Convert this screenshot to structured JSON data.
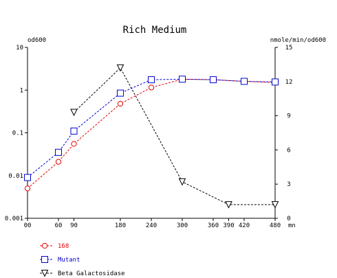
{
  "chart_data": {
    "type": "line",
    "title": "Rich Medium",
    "y_left_label": "od600",
    "y_right_label": "nmole/min/od600",
    "x_unit": "mn",
    "x_ticks": [
      0,
      60,
      90,
      180,
      240,
      300,
      360,
      390,
      420,
      480
    ],
    "x_tick_labels": [
      "00",
      "60",
      "90",
      "180",
      "240",
      "300",
      "360",
      "390",
      "420",
      "480"
    ],
    "xlim": [
      0,
      480
    ],
    "y_left_scale": "log",
    "y_left_ticks": [
      0.001,
      0.01,
      0.1,
      1,
      10
    ],
    "y_left_tick_labels": [
      "0.001",
      "0.01",
      "0.1",
      "1",
      "10"
    ],
    "y_left_lim": [
      0.001,
      10
    ],
    "y_right_ticks": [
      0,
      3,
      6,
      9,
      12,
      15
    ],
    "y_right_tick_labels": [
      "0",
      "3",
      "6",
      "9",
      "12",
      "15"
    ],
    "y_right_lim": [
      0,
      15
    ],
    "legend_position": "bottom-left",
    "series": [
      {
        "name": "168",
        "axis": "left",
        "color": "#e00000",
        "marker": "circle",
        "x": [
          0,
          60,
          90,
          180,
          240,
          300,
          360,
          420,
          480
        ],
        "values": [
          0.005,
          0.021,
          0.055,
          0.48,
          1.15,
          1.8,
          1.75,
          1.6,
          1.5
        ]
      },
      {
        "name": "Mutant",
        "axis": "left",
        "color": "#0000d0",
        "marker": "square",
        "x": [
          0,
          60,
          90,
          180,
          240,
          300,
          360,
          420,
          480
        ],
        "values": [
          0.009,
          0.035,
          0.11,
          0.85,
          1.75,
          1.8,
          1.75,
          1.6,
          1.55
        ]
      },
      {
        "name": "Beta Galactosidase",
        "axis": "right",
        "color": "#000000",
        "marker": "triangle-down",
        "x": [
          90,
          180,
          300,
          390,
          480
        ],
        "values": [
          9.3,
          13.2,
          3.2,
          1.2,
          1.2
        ]
      }
    ]
  }
}
